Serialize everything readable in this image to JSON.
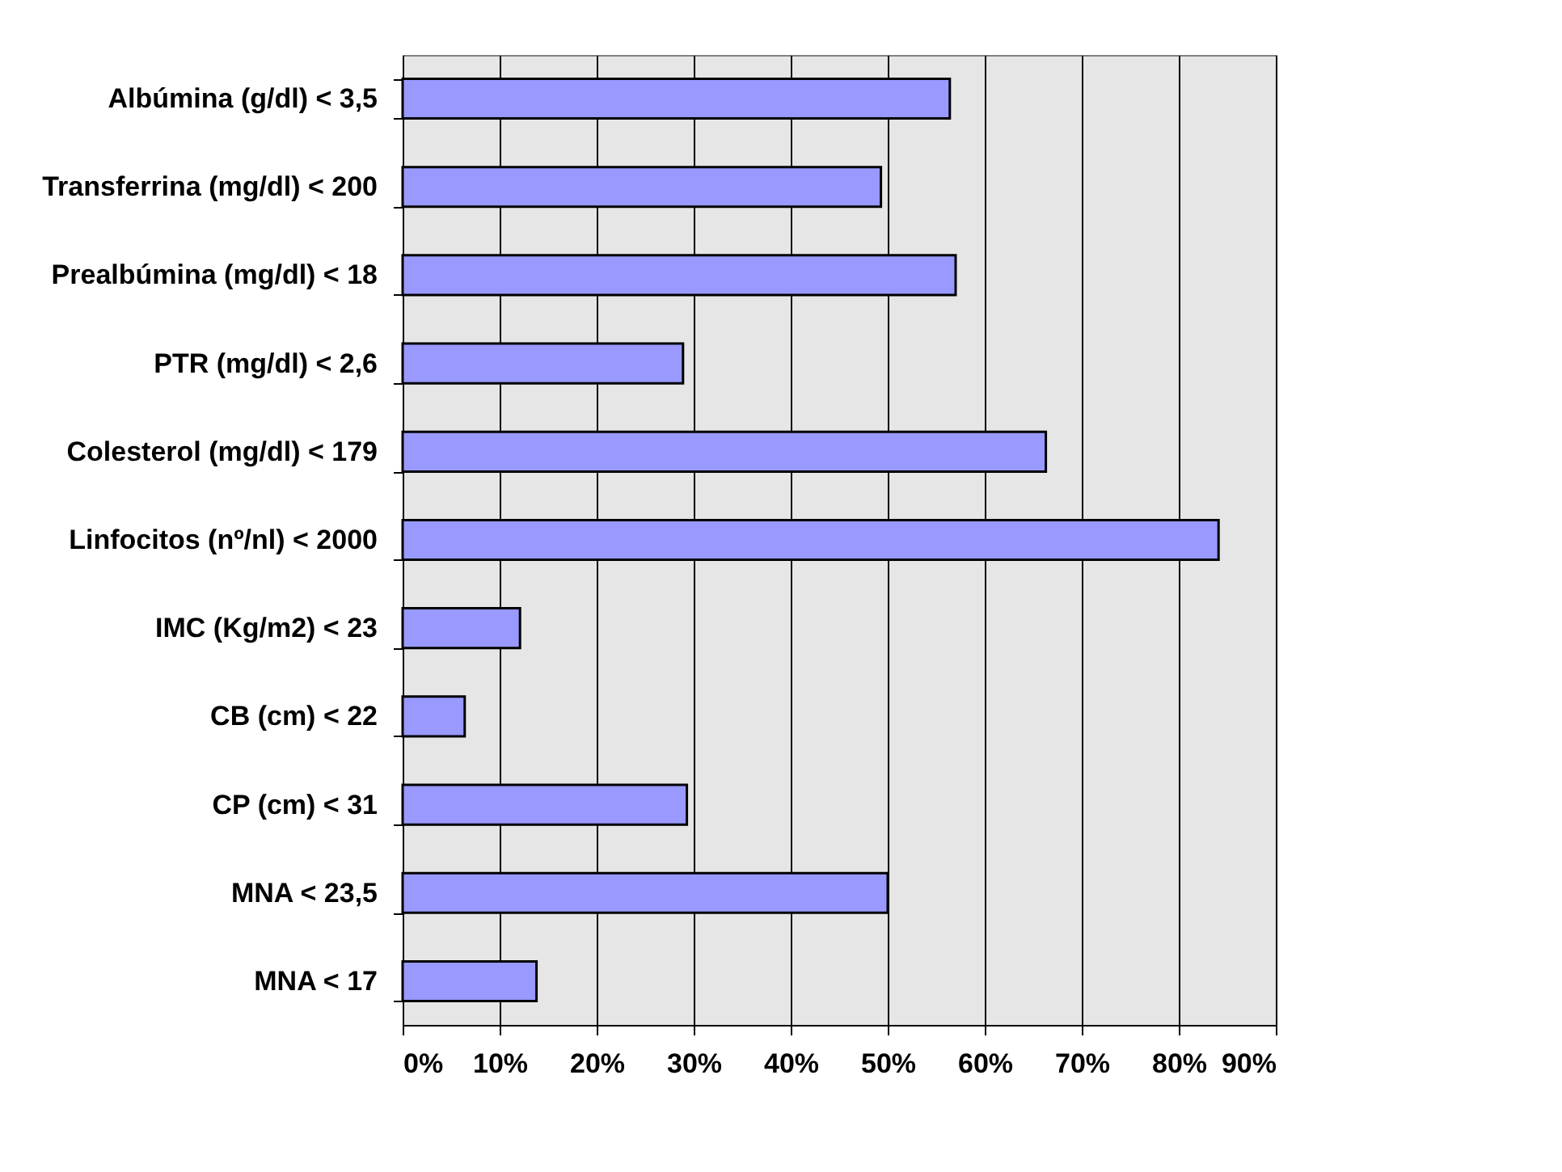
{
  "chart_data": {
    "type": "bar",
    "orientation": "horizontal",
    "categories": [
      "Albúmina (g/dl)  < 3,5",
      "Transferrina (mg/dl)  < 200",
      "Prealbúmina  (mg/dl)  < 18",
      "PTR  (mg/dl)  < 2,6",
      "Colesterol    (mg/dl)  < 179",
      "Linfocitos   (nº/nl)  < 2000",
      "IMC (Kg/m2) < 23",
      "CB  (cm)  < 22",
      "CP (cm)  < 31",
      "MNA  < 23,5",
      "MNA  < 17"
    ],
    "values": [
      56.4,
      49.3,
      57.0,
      28.9,
      66.3,
      84.1,
      12.1,
      6.4,
      29.3,
      50.0,
      13.8
    ],
    "color": "#9999ff",
    "xlim": [
      0,
      90
    ],
    "xticks": [
      {
        "value": 0,
        "label": "0%"
      },
      {
        "value": 10,
        "label": "10%"
      },
      {
        "value": 20,
        "label": "20%"
      },
      {
        "value": 30,
        "label": "30%"
      },
      {
        "value": 40,
        "label": "40%"
      },
      {
        "value": 50,
        "label": "50%"
      },
      {
        "value": 60,
        "label": "60%"
      },
      {
        "value": 70,
        "label": "70%"
      },
      {
        "value": 80,
        "label": "80%"
      },
      {
        "value": 90,
        "label": "90%"
      }
    ],
    "grid": "x"
  }
}
